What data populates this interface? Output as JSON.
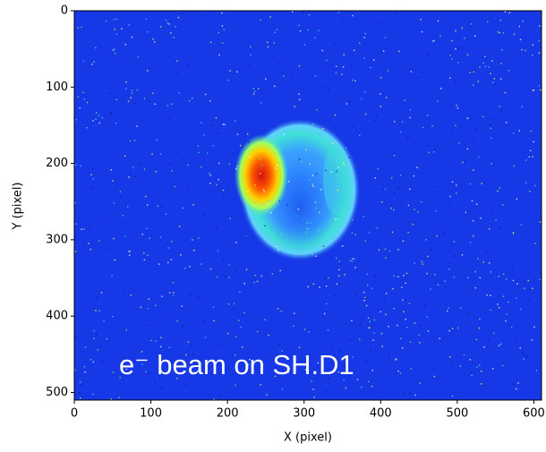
{
  "chart_data": {
    "type": "heatmap",
    "xlabel": "X (pixel)",
    "ylabel": "Y (pixel)",
    "annotation": "e⁻ beam on SH.D1",
    "xlim": [
      0,
      610
    ],
    "xticks": [
      0,
      100,
      200,
      300,
      400,
      500,
      600
    ],
    "ylim": [
      510,
      0
    ],
    "yticks": [
      0,
      100,
      200,
      300,
      400,
      500
    ]
  }
}
